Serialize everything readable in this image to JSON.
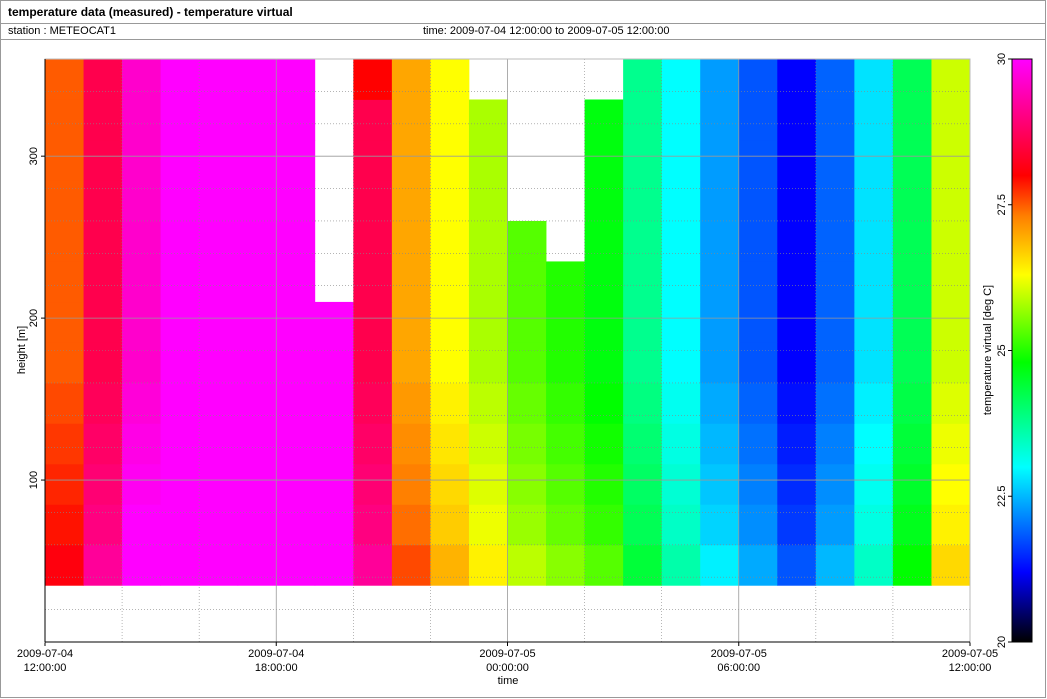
{
  "header": {
    "title": "temperature data (measured) - temperature virtual",
    "station": "station : METEOCAT1",
    "time": "time: 2009-07-04 12:00:00 to 2009-07-05 12:00:00"
  },
  "chart_data": {
    "type": "heatmap",
    "xlabel": "time",
    "ylabel": "height [m]",
    "colorbar_label": "temperature virtual [deg C]",
    "x": [
      "2009-07-04 12:00:00",
      "2009-07-04 13:00:00",
      "2009-07-04 14:00:00",
      "2009-07-04 15:00:00",
      "2009-07-04 16:00:00",
      "2009-07-04 17:00:00",
      "2009-07-04 18:00:00",
      "2009-07-04 19:00:00",
      "2009-07-04 20:00:00",
      "2009-07-04 21:00:00",
      "2009-07-04 22:00:00",
      "2009-07-04 23:00:00",
      "2009-07-05 00:00:00",
      "2009-07-05 01:00:00",
      "2009-07-05 02:00:00",
      "2009-07-05 03:00:00",
      "2009-07-05 04:00:00",
      "2009-07-05 05:00:00",
      "2009-07-05 06:00:00",
      "2009-07-05 07:00:00",
      "2009-07-05 08:00:00",
      "2009-07-05 09:00:00",
      "2009-07-05 10:00:00",
      "2009-07-05 11:00:00",
      "2009-07-05 12:00:00"
    ],
    "y": [
      35,
      60,
      85,
      110,
      135,
      160,
      185,
      210,
      235,
      260,
      285,
      310,
      335,
      360
    ],
    "values": [
      [
        28.1,
        29.2,
        30,
        30,
        30,
        30,
        30,
        30,
        29.2,
        27.6,
        26.9,
        26.4,
        25.9,
        25.6,
        25.3,
        24.4,
        23.6,
        22.9,
        22.4,
        21.8,
        22.5,
        23.4,
        24.8,
        26.6
      ],
      [
        27.9,
        29.0,
        30,
        30,
        30,
        30,
        30,
        30,
        29.0,
        27.4,
        26.7,
        26.2,
        25.7,
        25.4,
        25.1,
        24.2,
        23.4,
        22.7,
        22.2,
        21.6,
        22.3,
        23.2,
        24.6,
        26.4
      ],
      [
        27.8,
        28.9,
        29.9,
        30,
        30,
        30,
        30,
        30,
        28.9,
        27.3,
        26.6,
        26.1,
        25.6,
        25.3,
        25.0,
        24.1,
        23.3,
        22.6,
        22.1,
        21.5,
        22.2,
        23.1,
        24.5,
        26.3
      ],
      [
        27.7,
        28.8,
        29.8,
        30,
        30,
        30,
        30,
        30,
        28.8,
        27.2,
        26.5,
        26.0,
        25.5,
        25.2,
        24.9,
        24.0,
        23.2,
        22.5,
        22.0,
        21.4,
        22.1,
        23.0,
        24.4,
        26.2
      ],
      [
        27.6,
        28.7,
        29.7,
        30,
        30,
        30,
        30,
        30,
        28.7,
        27.1,
        26.4,
        25.9,
        25.4,
        25.1,
        24.8,
        23.9,
        23.1,
        22.4,
        21.9,
        21.3,
        22.0,
        22.9,
        24.3,
        26.1
      ],
      [
        27.5,
        28.6,
        29.6,
        30,
        30,
        30,
        30,
        30,
        28.6,
        27.0,
        26.3,
        25.8,
        25.3,
        25.0,
        24.7,
        23.8,
        23.0,
        22.3,
        21.8,
        21.2,
        21.9,
        22.8,
        24.2,
        26.0
      ],
      [
        27.5,
        28.6,
        29.6,
        30,
        30,
        30,
        30,
        30,
        28.6,
        27.0,
        26.3,
        25.8,
        25.3,
        25.0,
        24.7,
        23.8,
        23.0,
        22.3,
        21.8,
        21.2,
        21.9,
        22.8,
        24.2,
        26.0
      ],
      [
        27.5,
        28.6,
        29.6,
        30,
        30,
        30,
        30,
        null,
        28.6,
        27.0,
        26.3,
        25.8,
        25.3,
        25.0,
        24.7,
        23.8,
        23.0,
        22.3,
        21.8,
        21.2,
        21.9,
        22.8,
        24.2,
        26.0
      ],
      [
        27.5,
        28.6,
        29.6,
        30,
        30,
        30,
        30,
        null,
        28.6,
        27.0,
        26.3,
        25.8,
        25.3,
        null,
        24.7,
        23.8,
        23.0,
        22.3,
        21.8,
        21.2,
        21.9,
        22.8,
        24.2,
        26.0
      ],
      [
        27.5,
        28.6,
        29.6,
        30,
        30,
        30,
        30,
        null,
        28.6,
        27.0,
        26.3,
        25.8,
        null,
        null,
        24.7,
        23.8,
        23.0,
        22.3,
        21.8,
        21.2,
        21.9,
        22.8,
        24.2,
        26.0
      ],
      [
        27.5,
        28.6,
        29.6,
        30,
        30,
        30,
        30,
        null,
        28.6,
        27.0,
        26.3,
        25.8,
        null,
        null,
        24.7,
        23.8,
        23.0,
        22.3,
        21.8,
        21.2,
        21.9,
        22.8,
        24.2,
        26.0
      ],
      [
        27.5,
        28.6,
        29.6,
        30,
        30,
        30,
        30,
        null,
        28.6,
        27.0,
        26.3,
        25.8,
        null,
        null,
        24.7,
        23.8,
        23.0,
        22.3,
        21.8,
        21.2,
        21.9,
        22.8,
        24.2,
        26.0
      ],
      [
        27.5,
        28.6,
        29.6,
        30,
        30,
        30,
        30,
        null,
        28.0,
        27.0,
        26.3,
        null,
        null,
        null,
        null,
        23.8,
        23.0,
        22.3,
        21.8,
        21.2,
        21.9,
        22.8,
        24.2,
        26.0
      ]
    ],
    "xlim": [
      "2009-07-04 12:00:00",
      "2009-07-05 12:00:00"
    ],
    "xticks": [
      {
        "value": "2009-07-04 12:00:00",
        "label": [
          "2009-07-04",
          "12:00:00"
        ]
      },
      {
        "value": "2009-07-04 18:00:00",
        "label": [
          "2009-07-04",
          "18:00:00"
        ]
      },
      {
        "value": "2009-07-05 00:00:00",
        "label": [
          "2009-07-05",
          "00:00:00"
        ]
      },
      {
        "value": "2009-07-05 06:00:00",
        "label": [
          "2009-07-05",
          "06:00:00"
        ]
      },
      {
        "value": "2009-07-05 12:00:00",
        "label": [
          "2009-07-05",
          "12:00:00"
        ]
      }
    ],
    "xminorticks": [
      "2009-07-04 14:00:00",
      "2009-07-04 16:00:00",
      "2009-07-04 20:00:00",
      "2009-07-04 22:00:00",
      "2009-07-05 02:00:00",
      "2009-07-05 04:00:00",
      "2009-07-05 08:00:00",
      "2009-07-05 10:00:00"
    ],
    "ylim": [
      0,
      360
    ],
    "yticks": [
      100,
      200,
      300
    ],
    "yminorticks": [
      20,
      40,
      60,
      80,
      120,
      140,
      160,
      180,
      220,
      240,
      260,
      280,
      320,
      340
    ],
    "clim": [
      20,
      30
    ],
    "cticks": [
      20,
      22.5,
      25,
      27.5,
      30
    ],
    "colorscale": [
      {
        "value": 20,
        "color": "#000000"
      },
      {
        "value": 21.2,
        "color": "#0000ff"
      },
      {
        "value": 23,
        "color": "#00ffff"
      },
      {
        "value": 24.8,
        "color": "#00ff00"
      },
      {
        "value": 26.3,
        "color": "#ffff00"
      },
      {
        "value": 27.3,
        "color": "#ff8000"
      },
      {
        "value": 28,
        "color": "#ff0000"
      },
      {
        "value": 30,
        "color": "#ff00ff"
      }
    ],
    "grid": true
  }
}
